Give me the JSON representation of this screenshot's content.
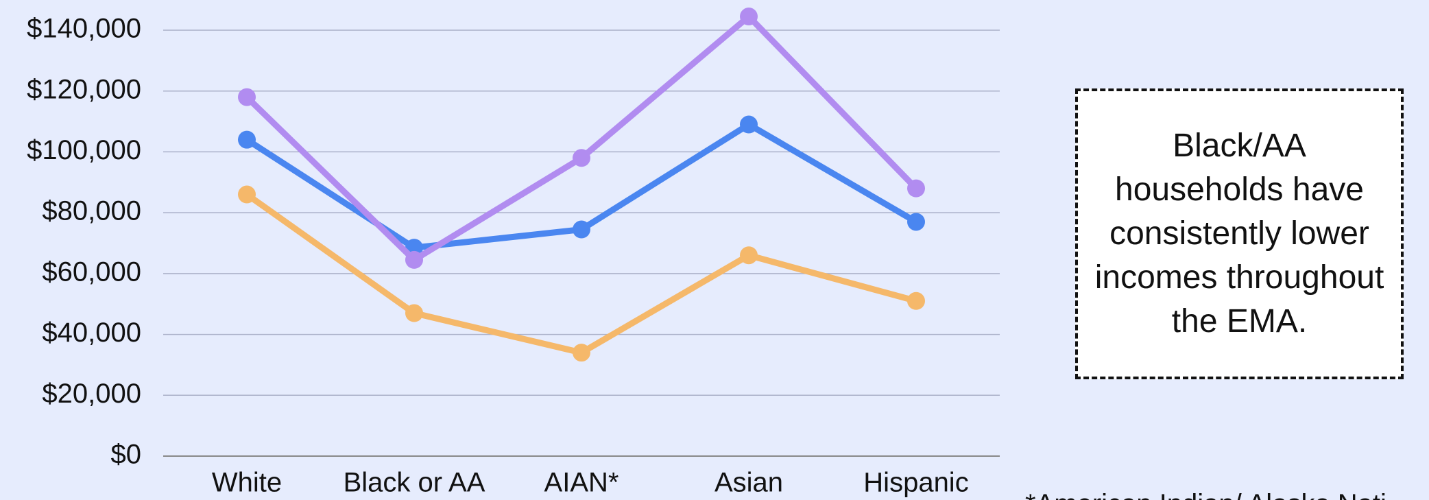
{
  "chart_data": {
    "type": "line",
    "categories": [
      "White",
      "Black or AA",
      "AIAN*",
      "Asian",
      "Hispanic"
    ],
    "series": [
      {
        "color": "#4a86f0",
        "values": [
          104000,
          68500,
          74500,
          109000,
          77000
        ]
      },
      {
        "color": "#f5b86a",
        "values": [
          86000,
          47000,
          34000,
          66000,
          51000
        ]
      },
      {
        "color": "#b18cf0",
        "values": [
          118000,
          64500,
          98000,
          144500,
          88000
        ]
      }
    ],
    "ylim": [
      0,
      140000
    ],
    "yticks": [
      {
        "value": 0,
        "label": "$0"
      },
      {
        "value": 20000,
        "label": "$20,000"
      },
      {
        "value": 40000,
        "label": "$40,000"
      },
      {
        "value": 60000,
        "label": "$60,000"
      },
      {
        "value": 80000,
        "label": "$80,000"
      },
      {
        "value": 100000,
        "label": "$100,000"
      },
      {
        "value": 120000,
        "label": "$120,000"
      },
      {
        "value": 140000,
        "label": "$140,000"
      }
    ],
    "grid": true,
    "annotation": "Black/AA households have consistently lower incomes throughout the EMA.",
    "footnote": "*American Indian/ Alaska Nati"
  }
}
